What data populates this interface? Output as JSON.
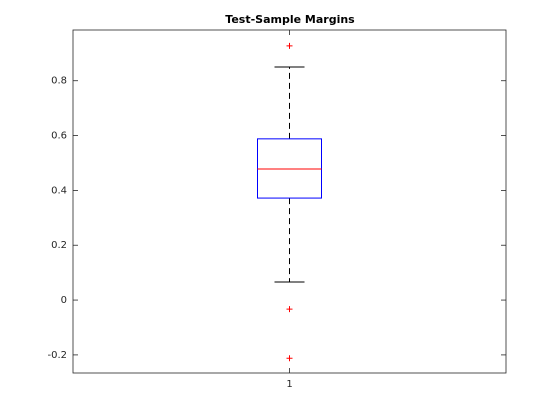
{
  "chart_data": {
    "type": "box",
    "title": "Test-Sample Margins",
    "xlim": [
      0.5,
      1.5
    ],
    "xticks": [
      1
    ],
    "ylim": [
      -0.266,
      0.985
    ],
    "yticks": [
      -0.2,
      0,
      0.2,
      0.4,
      0.6,
      0.8
    ],
    "boxes": [
      {
        "whisker_low": 0.066,
        "q1": 0.372,
        "median": 0.478,
        "q3": 0.588,
        "whisker_high": 0.85,
        "outliers": [
          0.927,
          -0.033,
          -0.212
        ]
      }
    ],
    "box_color": "#0000ff",
    "median_color": "#ff0000",
    "whisker_color": "#000000",
    "outlier_color": "#ff0000"
  }
}
